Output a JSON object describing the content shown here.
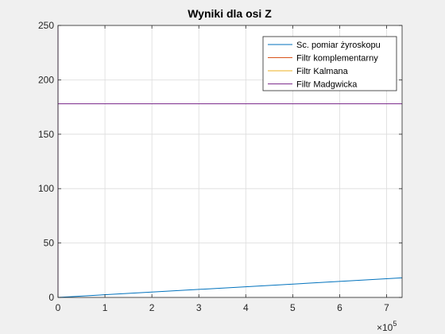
{
  "chart_data": {
    "type": "line",
    "title": "Wyniki dla osi Z",
    "xlabel": "",
    "ylabel": "",
    "xlim": [
      0,
      733000
    ],
    "ylim": [
      0,
      250
    ],
    "x_ticks": [
      0,
      100000,
      200000,
      300000,
      400000,
      500000,
      600000,
      700000
    ],
    "x_tick_labels": [
      "0",
      "1",
      "2",
      "3",
      "4",
      "5",
      "6",
      "7"
    ],
    "x_multiplier": {
      "base": "×10",
      "exponent": "5"
    },
    "y_ticks": [
      0,
      50,
      100,
      150,
      200,
      250
    ],
    "y_tick_labels": [
      "0",
      "50",
      "100",
      "150",
      "200",
      "250"
    ],
    "grid": true,
    "legend_position": "top-right",
    "background": "#ffffff",
    "series": [
      {
        "name": "Sc. pomiar żyroskopu",
        "color": "#0072bd",
        "x": [
          0,
          733000
        ],
        "y": [
          0,
          18
        ]
      },
      {
        "name": "Filtr komplementarny",
        "color": "#d95319",
        "x": [
          0,
          733000
        ],
        "y": [
          178,
          178
        ]
      },
      {
        "name": "Filtr Kalmana",
        "color": "#edb120",
        "x": [
          0,
          733000
        ],
        "y": [
          178,
          178
        ]
      },
      {
        "name": "Filtr Madgwicka",
        "color": "#7e2f8e",
        "x": [
          0,
          0,
          0,
          733000
        ],
        "y": [
          0,
          250,
          178,
          178
        ]
      }
    ]
  }
}
